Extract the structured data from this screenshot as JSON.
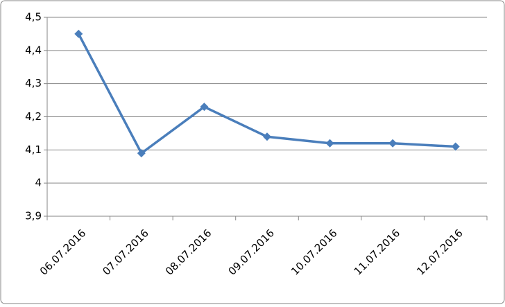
{
  "chart_data": {
    "type": "line",
    "categories": [
      "06.07.2016",
      "07.07.2016",
      "08.07.2016",
      "09.07.2016",
      "10.07.2016",
      "11.07.2016",
      "12.07.2016"
    ],
    "series": [
      {
        "color": "#4a7ebb",
        "values": [
          4.45,
          4.09,
          4.23,
          4.14,
          4.12,
          4.12,
          4.11
        ]
      }
    ],
    "ylim": [
      3.9,
      4.5
    ],
    "yticks": [
      {
        "value": 3.9,
        "label": "3,9"
      },
      4,
      {
        "value": 4.1,
        "label": "4,1"
      },
      {
        "value": 4.2,
        "label": "4,2"
      },
      {
        "value": 4.3,
        "label": "4,3"
      },
      {
        "value": 4.4,
        "label": "4,4"
      },
      {
        "value": 4.5,
        "label": "4,5"
      }
    ],
    "grid": true
  }
}
